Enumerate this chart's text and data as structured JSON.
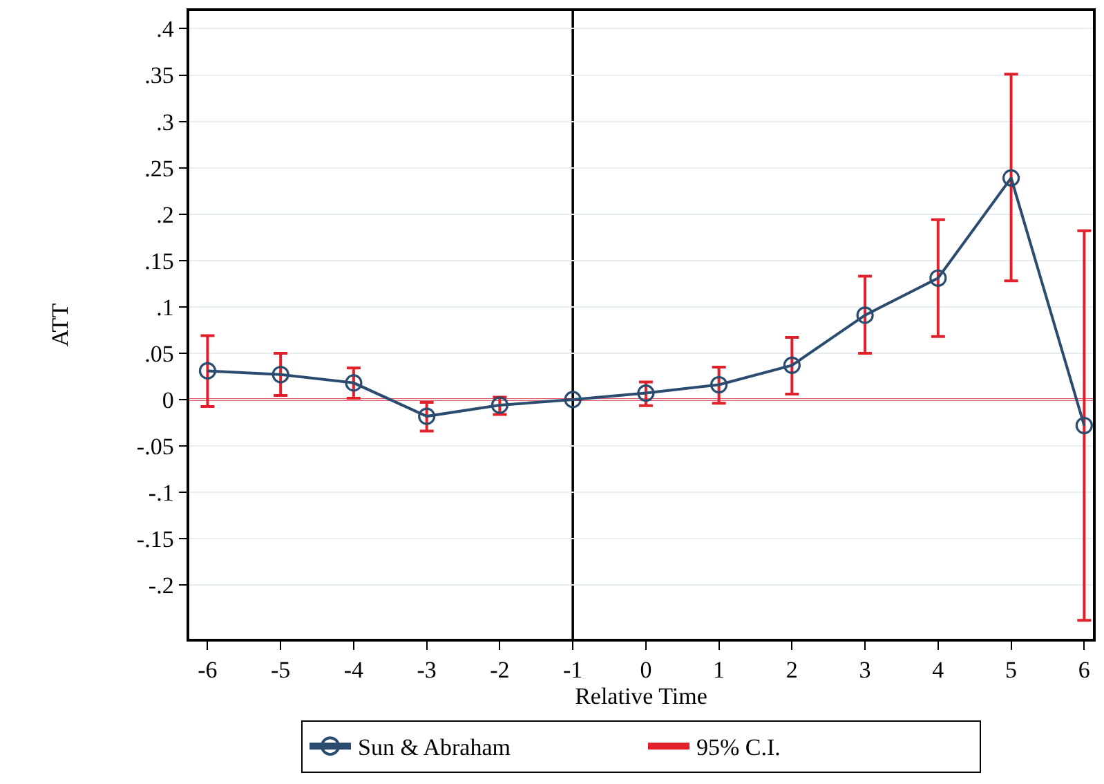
{
  "chart_data": {
    "type": "line",
    "xlabel": "Relative Time",
    "ylabel": "ATT",
    "x": [
      -6,
      -5,
      -4,
      -3,
      -2,
      -1,
      0,
      1,
      2,
      3,
      4,
      5,
      6
    ],
    "series": [
      {
        "name": "Sun & Abraham",
        "color": "#2b4c6f",
        "marker": "circle",
        "values": [
          0.031,
          0.027,
          0.018,
          -0.018,
          -0.006,
          0,
          0.007,
          0.016,
          0.037,
          0.091,
          0.131,
          0.239,
          -0.028
        ],
        "errors": [
          [
            -0.0075,
            0.069
          ],
          [
            0.0045,
            0.05
          ],
          [
            0.0015,
            0.034
          ],
          [
            -0.034,
            -0.003
          ],
          [
            -0.016,
            0.0025
          ],
          null,
          [
            -0.0065,
            0.019
          ],
          [
            -0.004,
            0.035
          ],
          [
            0.006,
            0.067
          ],
          [
            0.05,
            0.133
          ],
          [
            0.068,
            0.194
          ],
          [
            0.128,
            0.351
          ],
          [
            -0.238,
            0.182
          ]
        ]
      },
      {
        "name": "95% C.I.",
        "type": "other",
        "color": "#e0202a",
        "values": [
          null,
          null,
          null,
          null,
          null,
          null,
          null,
          null,
          null,
          null,
          null,
          null,
          null
        ]
      }
    ],
    "xlim": [
      -6.25,
      6.12
    ],
    "xticks": [
      -6,
      -5,
      -4,
      -3,
      -2,
      -1,
      0,
      1,
      2,
      3,
      4,
      5,
      6
    ],
    "ylim": [
      -0.258,
      0.419
    ],
    "yticks": [
      {
        "value": -0.2,
        "label": "-.2"
      },
      {
        "value": -0.15,
        "label": "-.15"
      },
      {
        "value": -0.1,
        "label": "-.1"
      },
      {
        "value": -0.05,
        "label": "-.05"
      },
      0,
      {
        "value": 0.05,
        "label": ".05"
      },
      {
        "value": 0.1,
        "label": ".1"
      },
      {
        "value": 0.15,
        "label": ".15"
      },
      {
        "value": 0.2,
        "label": ".2"
      },
      {
        "value": 0.25,
        "label": ".25"
      },
      {
        "value": 0.3,
        "label": ".3"
      },
      {
        "value": 0.35,
        "label": ".35"
      },
      {
        "value": 0.4,
        "label": ".4"
      }
    ],
    "ref_lines": [
      {
        "axis": "x",
        "value": -1,
        "color": "#000000"
      },
      {
        "axis": "y",
        "value": 0,
        "color": "#e0202a"
      }
    ],
    "grid": "y",
    "legend": "bottom"
  }
}
